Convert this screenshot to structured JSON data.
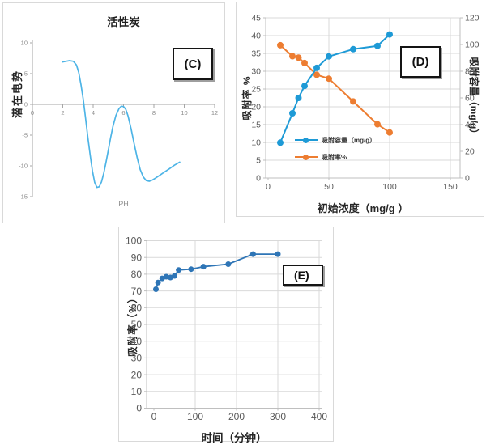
{
  "panels": {
    "c": {
      "letter": "(C)"
    },
    "d": {
      "letter": "(D)"
    },
    "e": {
      "letter": "(E)"
    }
  },
  "theme": {
    "grid": "#D9D9D9",
    "axis": "#BFBFBF",
    "axis_c": "#A6A6A6",
    "tick_text": "#595959",
    "tick_text_c": "#8C8C8C"
  },
  "chart_data": [
    {
      "id": "C",
      "type": "line",
      "title": "活性炭",
      "xlabel": "PH",
      "ylabel": "潜在电势",
      "xlim": [
        0,
        12
      ],
      "ylim": [
        -15,
        10
      ],
      "xticks": [
        0,
        2,
        4,
        6,
        8,
        10,
        12
      ],
      "yticks": [
        10,
        5,
        0,
        -5,
        -10,
        -15
      ],
      "grid": false,
      "zero_axis": true,
      "legend": false,
      "series": [
        {
          "name": "zeta-potential",
          "color": "#4DB4E6",
          "marker": false,
          "x": [
            2.0,
            2.2,
            2.45,
            2.7,
            2.9,
            3.05,
            3.2,
            3.35,
            3.5,
            3.65,
            3.8,
            3.95,
            4.1,
            4.25,
            4.4,
            4.55,
            4.7,
            4.85,
            5.0,
            5.15,
            5.3,
            5.5,
            5.7,
            5.85,
            6.0,
            6.15,
            6.3,
            6.5,
            6.7,
            6.9,
            7.1,
            7.3,
            7.5,
            7.7,
            7.9,
            8.1,
            8.4,
            8.7,
            9.0,
            9.35,
            9.7
          ],
          "y": [
            6.9,
            7.0,
            7.1,
            7.0,
            6.4,
            5.2,
            3.2,
            0.8,
            -2.2,
            -5.3,
            -8.2,
            -10.8,
            -12.7,
            -13.5,
            -13.4,
            -12.6,
            -11.2,
            -9.4,
            -7.4,
            -5.4,
            -3.6,
            -1.8,
            -0.7,
            -0.3,
            -0.35,
            -0.8,
            -1.9,
            -4.0,
            -6.4,
            -8.7,
            -10.6,
            -11.8,
            -12.4,
            -12.5,
            -12.3,
            -12.0,
            -11.5,
            -11.0,
            -10.5,
            -9.9,
            -9.4
          ]
        }
      ]
    },
    {
      "id": "D",
      "type": "line",
      "dual_axis": true,
      "xlabel": "初始浓度（mg/g ）",
      "ylabel_left": "吸附率 %",
      "ylabel_right": "吸附容量（mg/g）",
      "xlim": [
        0,
        150
      ],
      "ylim_left": [
        0,
        45
      ],
      "ylim_right": [
        0,
        120
      ],
      "xticks": [
        0,
        50,
        100,
        150
      ],
      "yticks_left": [
        0,
        5,
        10,
        15,
        20,
        25,
        30,
        35,
        40,
        45
      ],
      "yticks_right": [
        0,
        20,
        40,
        60,
        80,
        100,
        120
      ],
      "grid": true,
      "legend_position": "inside-lower-left",
      "series": [
        {
          "name": "吸附容量（mg/g）",
          "axis": "right",
          "color": "#1E9AD6",
          "marker": true,
          "x": [
            10,
            20,
            25,
            30,
            40,
            50,
            70,
            90,
            100
          ],
          "y": [
            26.5,
            48.5,
            60,
            69,
            82.5,
            91,
            96.5,
            99,
            107.5
          ]
        },
        {
          "name": "吸附率%",
          "axis": "left",
          "color": "#ED7D31",
          "marker": true,
          "x": [
            10,
            20,
            25,
            30,
            40,
            50,
            70,
            90,
            100
          ],
          "y": [
            37.3,
            34.2,
            33.8,
            32.3,
            29.0,
            27.9,
            21.5,
            15.1,
            12.8
          ]
        }
      ]
    },
    {
      "id": "E",
      "type": "line",
      "xlabel": "时间（分钟）",
      "ylabel": "吸附率（%）",
      "xlim": [
        0,
        400
      ],
      "ylim": [
        0,
        100
      ],
      "xticks": [
        0,
        100,
        200,
        300,
        400
      ],
      "yticks": [
        0,
        10,
        20,
        30,
        40,
        50,
        60,
        70,
        80,
        90,
        100
      ],
      "grid": "both",
      "legend": false,
      "series": [
        {
          "name": "吸附率",
          "color": "#2E75B6",
          "marker": true,
          "x": [
            5,
            10,
            20,
            30,
            40,
            50,
            60,
            90,
            120,
            180,
            240,
            300
          ],
          "y": [
            71,
            75,
            77.5,
            78.5,
            78,
            79,
            82.5,
            83,
            84.5,
            86,
            92,
            92
          ]
        }
      ]
    }
  ]
}
